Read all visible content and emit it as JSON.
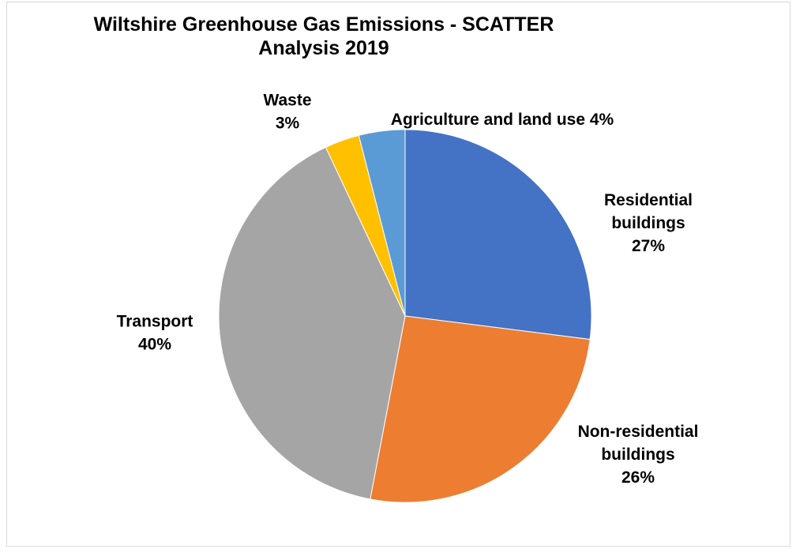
{
  "chart_data": {
    "type": "pie",
    "title_line1": "Wiltshire Greenhouse Gas Emissions - SCATTER",
    "title_line2": "Analysis 2019",
    "start_angle_deg": 0,
    "direction": "clockwise",
    "slices": [
      {
        "name": "Residential buildings",
        "label_lines": [
          "Residential",
          "buildings",
          "27%"
        ],
        "value": 27,
        "color": "#4472c4"
      },
      {
        "name": "Non-residential buildings",
        "label_lines": [
          "Non-residential",
          "buildings",
          "26%"
        ],
        "value": 26,
        "color": "#ed7d31"
      },
      {
        "name": "Transport",
        "label_lines": [
          "Transport",
          "40%"
        ],
        "value": 40,
        "color": "#a5a5a5"
      },
      {
        "name": "Waste",
        "label_lines": [
          "Waste",
          "3%"
        ],
        "value": 3,
        "color": "#ffc000"
      },
      {
        "name": "Agriculture and land use",
        "label_lines": [
          "Agriculture and land use 4%"
        ],
        "value": 4,
        "color": "#5b9bd5"
      }
    ]
  }
}
